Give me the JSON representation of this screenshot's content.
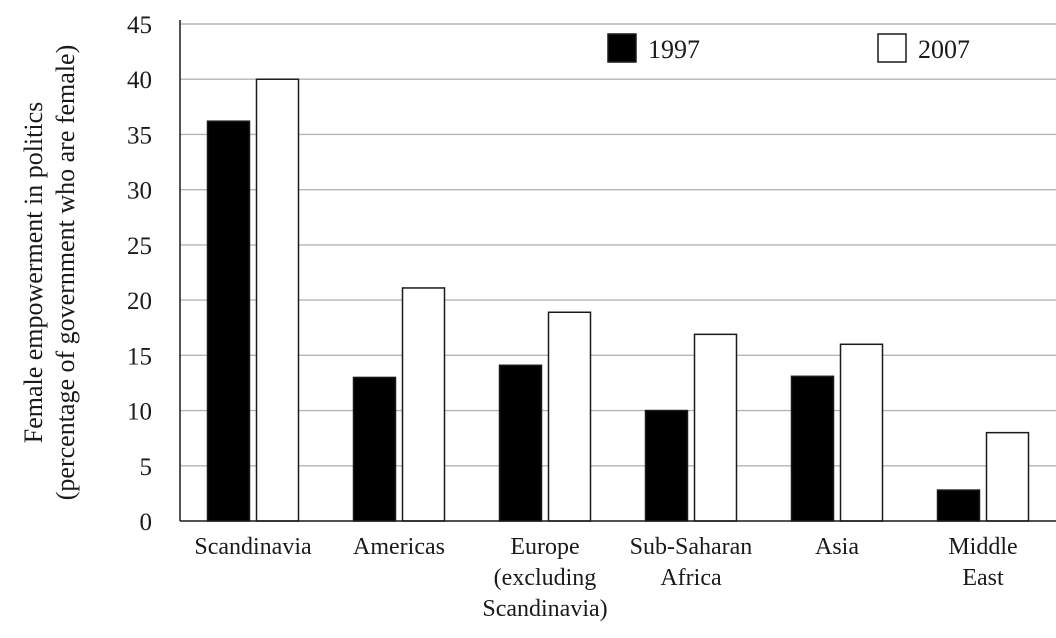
{
  "chart_data": {
    "type": "bar",
    "title": "",
    "xlabel": "",
    "ylabel": [
      "Female empowerment in politics",
      "(percentage of government who are female)"
    ],
    "ylim": [
      0,
      45
    ],
    "yticks": [
      0,
      5,
      10,
      15,
      20,
      25,
      30,
      35,
      40,
      45
    ],
    "grid": true,
    "legend_position": "top-right",
    "categories": [
      [
        "Scandinavia"
      ],
      [
        "Americas"
      ],
      [
        "Europe",
        "(excluding",
        "Scandinavia)"
      ],
      [
        "Sub-Saharan",
        "Africa"
      ],
      [
        "Asia"
      ],
      [
        "Middle",
        "East"
      ]
    ],
    "series": [
      {
        "name": "1997",
        "color": "#000000",
        "values": [
          36.2,
          13,
          14.1,
          10,
          13.1,
          2.8
        ]
      },
      {
        "name": "2007",
        "color": "#ffffff",
        "values": [
          40,
          21.1,
          18.9,
          16.9,
          16,
          8
        ]
      }
    ]
  }
}
